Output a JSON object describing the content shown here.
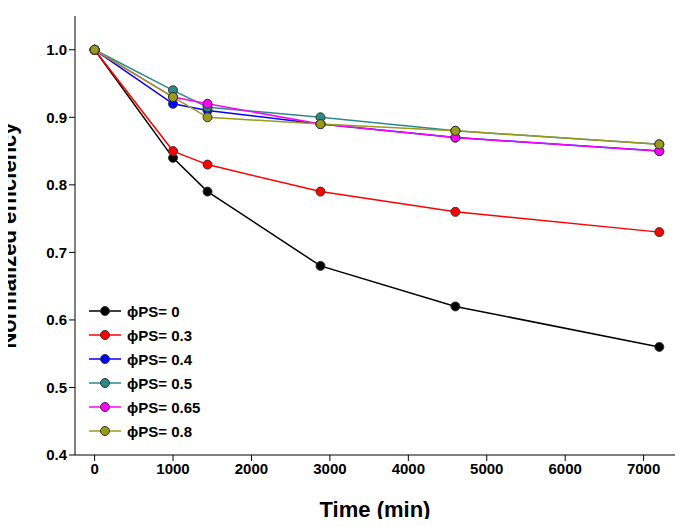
{
  "chart_data": {
    "type": "line",
    "x_label": "Time (min)",
    "y_label": "Normalized efficiency",
    "x": [
      0,
      1000,
      1440,
      2880,
      4600,
      7200
    ],
    "series": [
      {
        "name": "ϕPS= 0",
        "color": "#000000",
        "marker": "circle",
        "values": [
          1.0,
          0.84,
          0.79,
          0.68,
          0.62,
          0.56
        ]
      },
      {
        "name": "ϕPS= 0.3",
        "color": "#ff0000",
        "marker": "circle",
        "values": [
          1.0,
          0.85,
          0.83,
          0.79,
          0.76,
          0.73
        ]
      },
      {
        "name": "ϕPS= 0.4",
        "color": "#0000ff",
        "marker": "circle",
        "values": [
          1.0,
          0.92,
          0.91,
          0.89,
          0.87,
          0.85
        ]
      },
      {
        "name": "ϕPS= 0.5",
        "color": "#2a8a8a",
        "marker": "circle",
        "values": [
          1.0,
          0.94,
          0.915,
          0.9,
          0.88,
          0.86
        ]
      },
      {
        "name": "ϕPS= 0.65",
        "color": "#ff00ff",
        "marker": "circle",
        "values": [
          1.0,
          0.93,
          0.92,
          0.89,
          0.87,
          0.85
        ]
      },
      {
        "name": "ϕPS= 0.8",
        "color": "#9a9a1a",
        "marker": "circle",
        "values": [
          1.0,
          0.93,
          0.9,
          0.89,
          0.88,
          0.86
        ]
      }
    ],
    "xlim": [
      -250,
      7400
    ],
    "xticks": [
      0,
      1000,
      2000,
      3000,
      4000,
      5000,
      6000,
      7000
    ],
    "ylim": [
      0.4,
      1.05
    ],
    "yticks": [
      0.4,
      0.5,
      0.6,
      0.7,
      0.8,
      0.9,
      {
        "value": 1,
        "label": "1.0"
      }
    ],
    "grid": false,
    "legend": "lower left"
  }
}
